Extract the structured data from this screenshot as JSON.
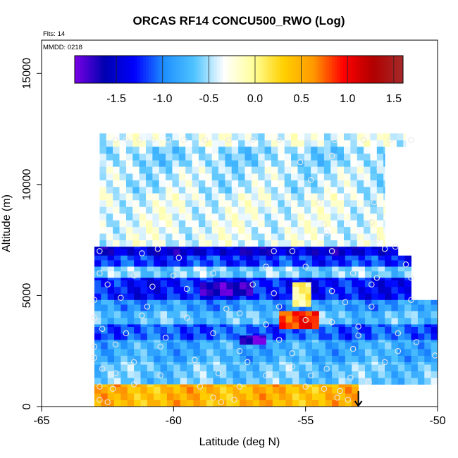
{
  "chart_data": {
    "type": "heatmap",
    "title": "ORCAS RF14 CONCU500_RWO (Log)",
    "notes": {
      "flights": "Flts: 14",
      "date": "MMDD: 0218"
    },
    "xlabel": "Latitude (deg N)",
    "ylabel": "Altitude (m)",
    "xlim": [
      -65,
      -50
    ],
    "ylim": [
      0,
      16500
    ],
    "x_ticks": [
      -65,
      -60,
      -55,
      -50
    ],
    "x_tick_labels": [
      "-65",
      "-60",
      "-55",
      "-50"
    ],
    "y_ticks": [
      0,
      5000,
      10000,
      15000
    ],
    "y_tick_labels": [
      "0",
      "5000",
      "10000",
      "15000"
    ],
    "colorbar": {
      "range": [
        -1.95,
        1.6
      ],
      "ticks": [
        -1.5,
        -1.0,
        -0.5,
        0.0,
        0.5,
        1.0,
        1.5
      ],
      "tick_labels": [
        "-1.5",
        "-1.0",
        "-0.5",
        "0.0",
        "0.5",
        "1.0",
        "1.5"
      ],
      "colors": [
        "#7a00e6",
        "#0000b0",
        "#0000ff",
        "#1e90ff",
        "#4fc3ff",
        "#ffffff",
        "#ffff99",
        "#ffd000",
        "#ff9900",
        "#ff0000",
        "#b00000",
        "#a52a2a"
      ],
      "position": "top"
    },
    "cell_size": {
      "dlat": 0.25,
      "dalt": 300
    },
    "regions": [
      {
        "lat": [
          -62.8,
          -51.2
        ],
        "alt": [
          11700,
          12300
        ],
        "value": -0.35
      },
      {
        "lat": [
          -62.8,
          -52.0
        ],
        "alt": [
          10800,
          11700
        ],
        "value": -0.55
      },
      {
        "lat": [
          -62.8,
          -52.0
        ],
        "alt": [
          9600,
          10800
        ],
        "value": -0.45
      },
      {
        "lat": [
          -62.8,
          -52.0
        ],
        "alt": [
          7200,
          9600
        ],
        "value": -0.35
      },
      {
        "lat": [
          -63.0,
          -51.5
        ],
        "alt": [
          6800,
          7200
        ],
        "value": -1.5
      },
      {
        "lat": [
          -63.0,
          -51.0
        ],
        "alt": [
          6300,
          6800
        ],
        "value": -1.2
      },
      {
        "lat": [
          -63.0,
          -51.0
        ],
        "alt": [
          5800,
          6300
        ],
        "value": -0.6
      },
      {
        "lat": [
          -63.0,
          -51.0
        ],
        "alt": [
          4800,
          5800
        ],
        "value": -1.3
      },
      {
        "lat": [
          -63.0,
          -50.0
        ],
        "alt": [
          4300,
          4800
        ],
        "value": -0.9
      },
      {
        "lat": [
          -63.0,
          -50.0
        ],
        "alt": [
          3700,
          4300
        ],
        "value": -0.7
      },
      {
        "lat": [
          -63.0,
          -50.0
        ],
        "alt": [
          3000,
          3700
        ],
        "value": -1.1
      },
      {
        "lat": [
          -63.0,
          -50.0
        ],
        "alt": [
          2000,
          3000
        ],
        "value": -0.8
      },
      {
        "lat": [
          -63.0,
          -50.0
        ],
        "alt": [
          1000,
          2000
        ],
        "value": -0.65
      },
      {
        "lat": [
          -63.0,
          -53.0
        ],
        "alt": [
          0,
          1000
        ],
        "value": 0.45
      },
      {
        "lat": [
          -59.0,
          -57.0
        ],
        "alt": [
          5000,
          5600
        ],
        "value": -1.7
      },
      {
        "lat": [
          -56.0,
          -54.5
        ],
        "alt": [
          3500,
          4300
        ],
        "value": 0.9
      },
      {
        "lat": [
          -55.5,
          -54.8
        ],
        "alt": [
          4500,
          5600
        ],
        "value": 0.1
      },
      {
        "lat": [
          -57.5,
          -56.5
        ],
        "alt": [
          2800,
          3200
        ],
        "value": -1.8
      }
    ],
    "points": [
      [
        -62.2,
        12000
      ],
      [
        -61.8,
        12000
      ],
      [
        -61.3,
        12000
      ],
      [
        -60.8,
        12000
      ],
      [
        -60.2,
        12000
      ],
      [
        -59.6,
        12000
      ],
      [
        -58.8,
        12000
      ],
      [
        -57.9,
        12000
      ],
      [
        -57.0,
        12000
      ],
      [
        -56.0,
        12000
      ],
      [
        -54.9,
        12000
      ],
      [
        -53.9,
        12000
      ],
      [
        -52.8,
        12000
      ],
      [
        -51.8,
        12000
      ],
      [
        -51.0,
        12000
      ],
      [
        -55.2,
        11000
      ],
      [
        -54.0,
        11300
      ],
      [
        -52.2,
        10700
      ],
      [
        -54.8,
        10200
      ],
      [
        -54.5,
        9200
      ],
      [
        -54.3,
        8200
      ],
      [
        -54.2,
        7800
      ],
      [
        -52.5,
        8300
      ],
      [
        -52.4,
        9200
      ],
      [
        -52.3,
        7500
      ],
      [
        -62.8,
        7000
      ],
      [
        -61.2,
        6900
      ],
      [
        -60.6,
        7100
      ],
      [
        -59.8,
        6700
      ],
      [
        -56.2,
        7000
      ],
      [
        -55.5,
        7000
      ],
      [
        -54.0,
        7000
      ],
      [
        -52.0,
        7100
      ],
      [
        -51.6,
        7200
      ],
      [
        -62.8,
        6000
      ],
      [
        -61.5,
        5900
      ],
      [
        -60.0,
        5900
      ],
      [
        -58.5,
        6000
      ],
      [
        -56.5,
        6300
      ],
      [
        -55.0,
        6300
      ],
      [
        -53.2,
        6000
      ],
      [
        -52.3,
        5800
      ],
      [
        -51.2,
        6400
      ],
      [
        -62.5,
        5500
      ],
      [
        -60.8,
        5400
      ],
      [
        -59.5,
        5300
      ],
      [
        -57.0,
        5500
      ],
      [
        -56.2,
        5100
      ],
      [
        -54.0,
        5200
      ],
      [
        -52.5,
        5500
      ],
      [
        -51.0,
        5800
      ],
      [
        -63.0,
        4800
      ],
      [
        -62.0,
        4900
      ],
      [
        -61.0,
        4500
      ],
      [
        -58.0,
        4400
      ],
      [
        -56.0,
        4500
      ],
      [
        -53.5,
        4700
      ],
      [
        -52.5,
        4500
      ],
      [
        -51.0,
        4800
      ],
      [
        -63.0,
        4000
      ],
      [
        -61.2,
        4100
      ],
      [
        -59.5,
        4000
      ],
      [
        -57.5,
        4200
      ],
      [
        -56.5,
        3700
      ],
      [
        -55.0,
        3900
      ],
      [
        -54.0,
        3800
      ],
      [
        -53.0,
        3600
      ],
      [
        -51.5,
        3300
      ],
      [
        -62.7,
        3500
      ],
      [
        -61.8,
        3300
      ],
      [
        -60.3,
        3100
      ],
      [
        -58.5,
        3300
      ],
      [
        -56.0,
        3000
      ],
      [
        -53.0,
        3200
      ],
      [
        -50.8,
        2900
      ],
      [
        -63.0,
        2700
      ],
      [
        -62.2,
        2800
      ],
      [
        -60.5,
        2700
      ],
      [
        -57.5,
        2500
      ],
      [
        -55.5,
        2400
      ],
      [
        -53.2,
        2600
      ],
      [
        -51.5,
        2500
      ],
      [
        -63.0,
        2200
      ],
      [
        -61.5,
        2000
      ],
      [
        -59.2,
        2100
      ],
      [
        -57.2,
        2000
      ],
      [
        -55.5,
        1800
      ],
      [
        -54.2,
        1700
      ],
      [
        -52.0,
        2000
      ],
      [
        -50.1,
        2300
      ],
      [
        -62.7,
        1700
      ],
      [
        -62.2,
        1500
      ],
      [
        -60.5,
        1400
      ],
      [
        -58.3,
        1500
      ],
      [
        -56.5,
        1400
      ],
      [
        -54.8,
        1400
      ],
      [
        -53.3,
        1300
      ],
      [
        -52.6,
        1100
      ],
      [
        -62.8,
        900
      ],
      [
        -62.3,
        800
      ],
      [
        -61.5,
        1000
      ],
      [
        -59.0,
        900
      ],
      [
        -57.5,
        900
      ],
      [
        -55.0,
        900
      ],
      [
        -54.3,
        800
      ],
      [
        -53.7,
        700
      ],
      [
        -62.8,
        300
      ],
      [
        -62.5,
        200
      ],
      [
        -58.5,
        400
      ],
      [
        -58.2,
        200
      ],
      [
        -57.7,
        300
      ],
      [
        -53.8,
        400
      ],
      [
        -53.4,
        300
      ]
    ],
    "marker": {
      "lat": -53.0,
      "alt_top": 700,
      "alt_bottom": 0
    }
  }
}
